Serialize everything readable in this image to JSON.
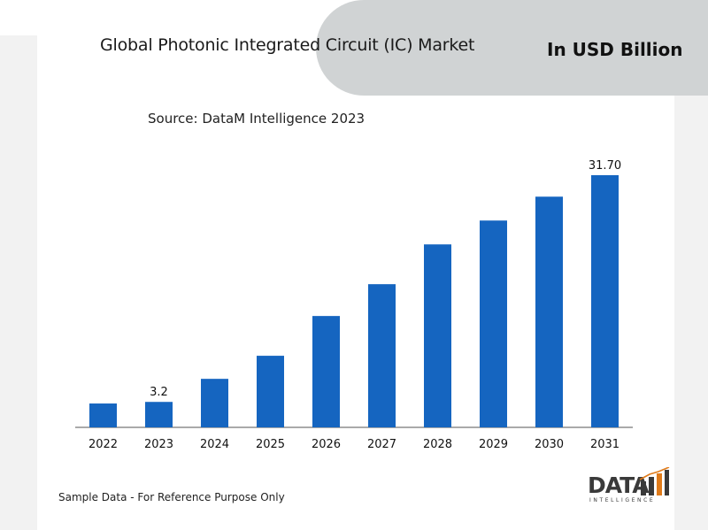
{
  "header": {
    "title": "Global Photonic Integrated Circuit (IC) Market",
    "units": "In USD Billion",
    "source": "Source: DataM Intelligence 2023"
  },
  "footer": {
    "note": "Sample Data - For Reference Purpose Only",
    "logo_text": "DATA",
    "logo_subtext": "INTELLIGENCE"
  },
  "colors": {
    "bar": "#1565c0",
    "axis": "#555555",
    "accent_orange": "#e07b1a"
  },
  "chart_data": {
    "type": "bar",
    "title": "Global Photonic Integrated Circuit (IC) Market",
    "xlabel": "",
    "ylabel": "In USD Billion",
    "categories": [
      "2022",
      "2023",
      "2024",
      "2025",
      "2026",
      "2027",
      "2028",
      "2029",
      "2030",
      "2031"
    ],
    "values": [
      3.0,
      3.2,
      6.1,
      9.0,
      14.0,
      18.0,
      23.0,
      26.0,
      29.0,
      31.7
    ],
    "data_labels": [
      {
        "category": "2023",
        "text": "3.2"
      },
      {
        "category": "2031",
        "text": "31.70"
      }
    ],
    "ylim": [
      0,
      31.7
    ],
    "grid": false,
    "legend": "none"
  }
}
